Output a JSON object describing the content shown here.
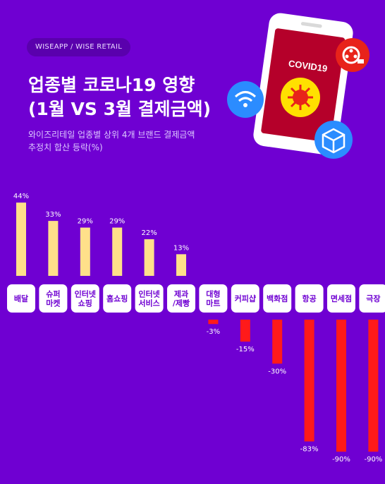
{
  "header": {
    "badge": "WISEAPP / WISE RETAIL",
    "title_line1": "업종별 코로나19 영향",
    "title_line2": "(1월 VS 3월 결제금액)",
    "subtitle_line1": "와이즈리테일 업종별 상위 4개 브랜드 결제금액",
    "subtitle_line2": "추정치 합산 등락(%)"
  },
  "illustration": {
    "phone_text": "COVID19",
    "icons": [
      "wifi-icon",
      "film-reel-icon",
      "package-box-icon",
      "virus-icon"
    ]
  },
  "colors": {
    "background": "#6f00d2",
    "positive_bar": "#ffe08a",
    "negative_bar": "#ff1a1a",
    "label_pill": "#ffffff"
  },
  "chart_data": {
    "type": "bar",
    "title": "업종별 코로나19 영향 (1월 VS 3월 결제금액)",
    "categories": [
      [
        "배달"
      ],
      [
        "슈퍼",
        "마켓"
      ],
      [
        "인터넷",
        "쇼핑"
      ],
      [
        "홈쇼핑"
      ],
      [
        "인터넷",
        "서비스"
      ],
      [
        "제과",
        "/제빵"
      ],
      [
        "대형",
        "마트"
      ],
      [
        "커피샵"
      ],
      [
        "백화점"
      ],
      [
        "항공"
      ],
      [
        "면세점"
      ],
      [
        "극장"
      ]
    ],
    "values": [
      44,
      33,
      29,
      29,
      22,
      13,
      -3,
      -15,
      -30,
      -83,
      -90,
      -90
    ],
    "value_labels": [
      "44%",
      "33%",
      "29%",
      "29%",
      "22%",
      "13%",
      "-3%",
      "-15%",
      "-30%",
      "-83%",
      "-90%",
      "-90%"
    ],
    "unit": "%",
    "grid": false
  }
}
